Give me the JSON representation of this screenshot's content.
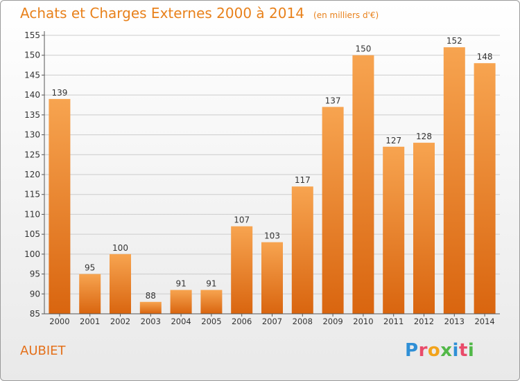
{
  "header": {
    "title": "Achats et Charges Externes 2000 à 2014",
    "subtitle": "(en milliers d'€)"
  },
  "footer": {
    "commune": "AUBIET",
    "brand": "Proxiti"
  },
  "chart_data": {
    "type": "bar",
    "title": "Achats et Charges Externes 2000 à 2014",
    "subtitle": "(en milliers d'€)",
    "xlabel": "",
    "ylabel": "",
    "categories": [
      "2000",
      "2001",
      "2002",
      "2003",
      "2004",
      "2005",
      "2006",
      "2007",
      "2008",
      "2009",
      "2010",
      "2011",
      "2012",
      "2013",
      "2014"
    ],
    "values": [
      139,
      95,
      100,
      88,
      91,
      91,
      107,
      103,
      117,
      137,
      150,
      127,
      128,
      152,
      148
    ],
    "ylim": [
      85,
      155
    ],
    "yticks": [
      85,
      90,
      95,
      100,
      105,
      110,
      115,
      120,
      125,
      130,
      135,
      140,
      145,
      150,
      155
    ],
    "grid": true,
    "colors": {
      "bar_light": "#f7a450",
      "bar_dark": "#d9650f",
      "title": "#e8811b"
    }
  }
}
